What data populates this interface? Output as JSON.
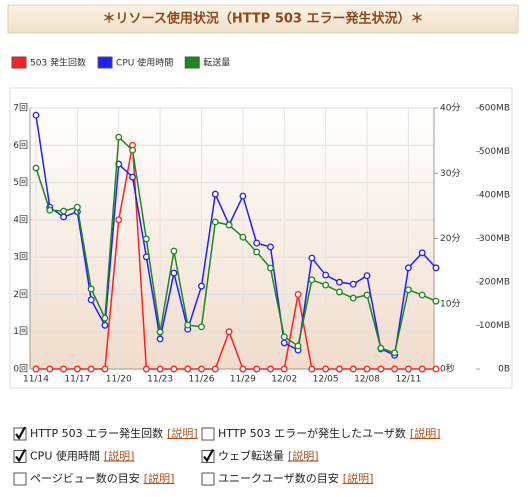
{
  "chart_data": {
    "type": "line",
    "title": "＊リソース使用状況（HTTP 503 エラー発生状況）＊",
    "categories": [
      "11/14",
      null,
      null,
      "11/17",
      null,
      null,
      "11/20",
      null,
      null,
      "11/23",
      null,
      null,
      "11/26",
      null,
      null,
      "11/29",
      null,
      null,
      "12/02",
      null,
      null,
      "12/05",
      null,
      null,
      "12/08",
      null,
      null,
      "12/11",
      null,
      null
    ],
    "ylim": [
      0,
      7
    ],
    "yticks": [
      {
        "value": 0,
        "label": "0回"
      },
      {
        "value": 1,
        "label": "1回"
      },
      {
        "value": 2,
        "label": "2回"
      },
      {
        "value": 3,
        "label": "3回"
      },
      {
        "value": 4,
        "label": "4回"
      },
      {
        "value": 5,
        "label": "5回"
      },
      {
        "value": 6,
        "label": "6回"
      },
      {
        "value": 7,
        "label": "7回"
      }
    ],
    "y2lim": [
      0,
      40
    ],
    "y2ticks": [
      {
        "value": 0,
        "label": "0秒"
      },
      {
        "value": 10,
        "label": "10分"
      },
      {
        "value": 20,
        "label": "20分"
      },
      {
        "value": 30,
        "label": "30分"
      },
      {
        "value": 40,
        "label": "40分"
      }
    ],
    "y3lim": [
      0,
      600
    ],
    "y3ticks": [
      {
        "value": 0,
        "label": "0B"
      },
      {
        "value": 100,
        "label": "100MB"
      },
      {
        "value": 200,
        "label": "200MB"
      },
      {
        "value": 300,
        "label": "300MB"
      },
      {
        "value": 400,
        "label": "400MB"
      },
      {
        "value": 500,
        "label": "500MB"
      },
      {
        "value": 600,
        "label": "600MB"
      }
    ],
    "grid": true,
    "series": [
      {
        "name": "503 発生回数",
        "color": "#ff2020",
        "values": [
          0,
          0,
          0,
          0,
          0,
          0,
          4,
          6,
          0,
          0,
          0,
          0,
          0,
          0,
          1,
          0,
          0,
          0,
          0,
          2,
          0,
          0,
          0,
          0,
          0,
          0,
          0,
          0,
          0,
          0
        ]
      },
      {
        "name": "CPU 使用時間",
        "color": "#2020ff",
        "axis": "y2",
        "values": [
          38.9,
          24.8,
          23.3,
          24.1,
          10.6,
          6.7,
          31.4,
          29.4,
          17.2,
          4.6,
          14.7,
          6.1,
          12.7,
          26.8,
          22.1,
          26.5,
          19.3,
          18.7,
          4.0,
          2.9,
          17.0,
          14.4,
          13.3,
          13.0,
          14.3,
          3.1,
          2.1,
          15.5,
          17.8,
          15.5
        ]
      },
      {
        "name": "転送量",
        "color": "#1a8a1a",
        "axis": "y3",
        "values": [
          462,
          365,
          363,
          372,
          184,
          117,
          533,
          503,
          299,
          85,
          271,
          101,
          97,
          338,
          331,
          303,
          269,
          232,
          74,
          53,
          205,
          193,
          177,
          163,
          170,
          48,
          37,
          182,
          170,
          156
        ]
      }
    ]
  },
  "options": [
    {
      "label": "HTTP 503 エラー発生回数",
      "link": "[説明]",
      "checked": true
    },
    {
      "label": "HTTP 503 エラーが発生したユーザ数",
      "link": "[説明]",
      "checked": false
    },
    {
      "label": "CPU 使用時間",
      "link": "[説明]",
      "checked": true
    },
    {
      "label": "ウェブ転送量",
      "link": "[説明]",
      "checked": true
    },
    {
      "label": "ページビュー数の目安",
      "link": "[説明]",
      "checked": false
    },
    {
      "label": "ユニークユーザ数の目安",
      "link": "[説明]",
      "checked": false
    }
  ]
}
